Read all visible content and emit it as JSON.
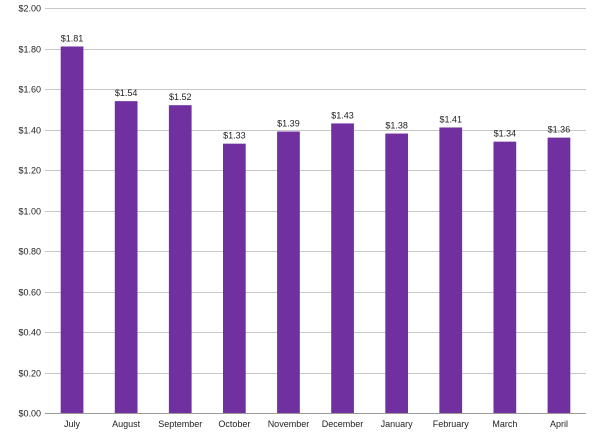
{
  "chart_data": {
    "type": "bar",
    "title": "",
    "xlabel": "",
    "ylabel": "",
    "categories": [
      "July",
      "August",
      "September",
      "October",
      "November",
      "December",
      "January",
      "February",
      "March",
      "April"
    ],
    "values": [
      1.81,
      1.54,
      1.52,
      1.33,
      1.39,
      1.43,
      1.38,
      1.41,
      1.34,
      1.36
    ],
    "data_labels": [
      "$1.81",
      "$1.54",
      "$1.52",
      "$1.33",
      "$1.39",
      "$1.43",
      "$1.38",
      "$1.41",
      "$1.34",
      "$1.36"
    ],
    "ylim": [
      0,
      2
    ],
    "yticks": [
      0,
      0.2,
      0.4,
      0.6,
      0.8,
      1.0,
      1.2,
      1.4,
      1.6,
      1.8,
      2.0
    ],
    "ytick_labels": [
      "$0.00",
      "$0.20",
      "$0.40",
      "$0.60",
      "$0.80",
      "$1.00",
      "$1.20",
      "$1.40",
      "$1.60",
      "$1.80",
      "$2.00"
    ],
    "grid": true,
    "legend": false,
    "colors": {
      "bar": "#7030A0",
      "grid": "#c8c8c8",
      "axis": "#9a9a9a",
      "text": "#222222"
    }
  }
}
